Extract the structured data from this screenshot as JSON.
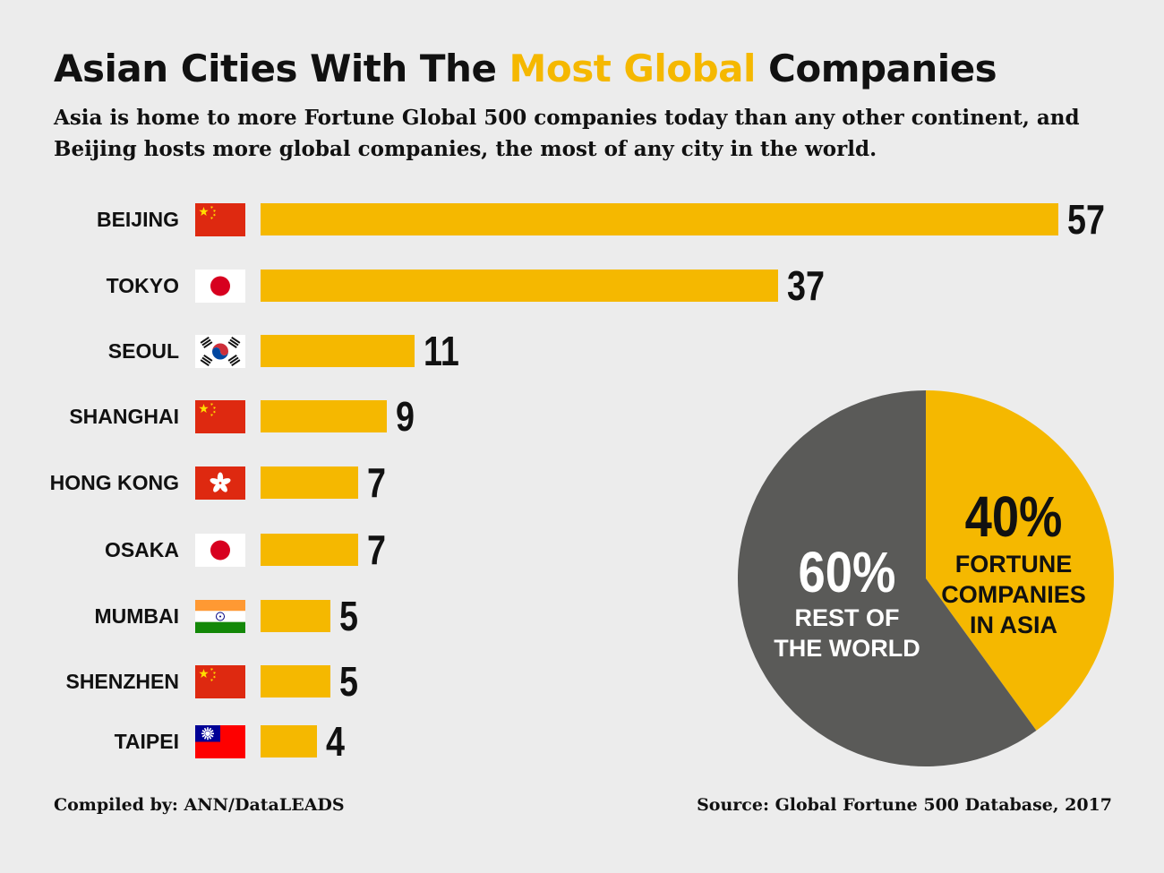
{
  "title": {
    "before": "Asian Cities With The ",
    "highlight": "Most Global",
    "after": " Companies"
  },
  "subtitle": "Asia is home to more Fortune Global 500 companies today than any other continent, and Beijing hosts more global companies, the most of any city in the world.",
  "colors": {
    "accent": "#f5b800",
    "dark_slice": "#5a5a58",
    "background": "#ececec"
  },
  "chart_data": [
    {
      "type": "bar",
      "orientation": "horizontal",
      "categories": [
        "BEIJING",
        "TOKYO",
        "SEOUL",
        "SHANGHAI",
        "HONG KONG",
        "OSAKA",
        "MUMBAI",
        "SHENZHEN",
        "TAIPEI"
      ],
      "values": [
        57,
        37,
        11,
        9,
        7,
        7,
        5,
        5,
        4
      ],
      "flags": [
        "china-flag-icon",
        "japan-flag-icon",
        "south-korea-flag-icon",
        "china-flag-icon",
        "hong-kong-flag-icon",
        "japan-flag-icon",
        "india-flag-icon",
        "china-flag-icon",
        "taiwan-flag-icon"
      ],
      "data_labels": [
        "57",
        "37",
        "11",
        "9",
        "7",
        "7",
        "5",
        "5",
        "4"
      ]
    },
    {
      "type": "pie",
      "slices": [
        {
          "pct_label": "40%",
          "label_lines": [
            "FORTUNE",
            "COMPANIES",
            "IN ASIA"
          ],
          "value": 40,
          "color": "#f5b800",
          "text_color": "#111111"
        },
        {
          "pct_label": "60%",
          "label_lines": [
            "REST OF",
            "THE WORLD"
          ],
          "value": 60,
          "color": "#5a5a58",
          "text_color": "#ffffff"
        }
      ]
    }
  ],
  "footer": {
    "compiled": "Compiled by: ANN/DataLEADS",
    "source": "Source: Global Fortune 500 Database, 2017"
  }
}
